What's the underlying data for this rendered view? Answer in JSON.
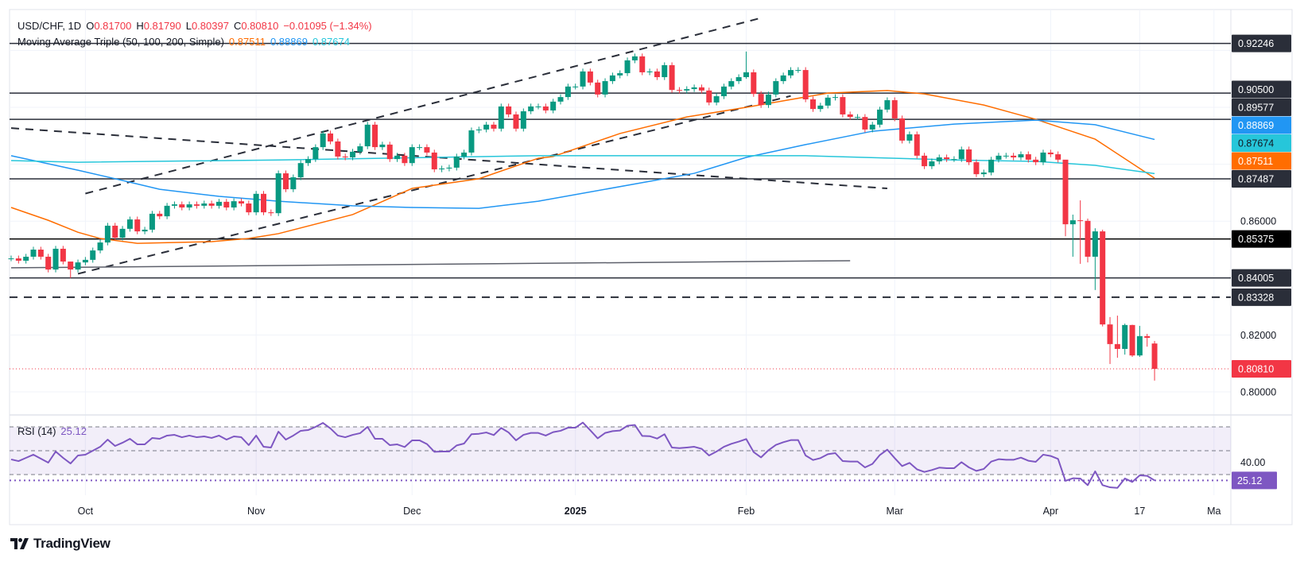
{
  "legend": {
    "symbol": "USD/CHF, 1D",
    "o_label": "O",
    "o": "0.81700",
    "h_label": "H",
    "h": "0.81790",
    "l_label": "L",
    "l": "0.80397",
    "c_label": "C",
    "c": "0.80810",
    "change": "−0.01095 (−1.34%)",
    "ma_title": "Moving Average Triple (50, 100, 200, Simple)",
    "ma50": "0.87511",
    "ma100": "0.88869",
    "ma200": "0.87674",
    "rsi_title": "RSI (14)",
    "rsi_value": "25.12"
  },
  "colors": {
    "up": "#089981",
    "down": "#f23645",
    "ma50": "#ff6d00",
    "ma100": "#2196f3",
    "ma200": "#26c6da",
    "rsi": "#7e57c2",
    "level": "#2a2e39",
    "tag_dark": "#2a2e39",
    "tag_black": "#000000",
    "grid": "#f0f3fa"
  },
  "brand": "TradingView",
  "chart_data": {
    "type": "candlestick",
    "symbol": "USD/CHF",
    "interval": "1D",
    "x_range": [
      "2024-09-17",
      "2025-04-21"
    ],
    "x_ticks": [
      {
        "label": "Oct",
        "date": "2024-10-01"
      },
      {
        "label": "Nov",
        "date": "2024-11-01"
      },
      {
        "label": "Dec",
        "date": "2024-12-02"
      },
      {
        "label": "2025",
        "date": "2025-01-01",
        "bold": true
      },
      {
        "label": "Feb",
        "date": "2025-02-03"
      },
      {
        "label": "Mar",
        "date": "2025-03-03"
      },
      {
        "label": "Apr",
        "date": "2025-04-01"
      },
      {
        "label": "17",
        "date": "2025-04-17"
      },
      {
        "label": "Ma",
        "date": "2025-05-01"
      }
    ],
    "y_ticks": [
      "0.86000",
      "0.82000",
      "0.80000"
    ],
    "y_grid": [
      0.8,
      0.82,
      0.84,
      0.86,
      0.88,
      0.9,
      0.92
    ],
    "close": [
      0.8469,
      0.8461,
      0.8475,
      0.85,
      0.8475,
      0.843,
      0.8503,
      0.8458,
      0.843,
      0.8455,
      0.8464,
      0.8497,
      0.8525,
      0.8584,
      0.8542,
      0.8573,
      0.8606,
      0.8564,
      0.857,
      0.8626,
      0.8617,
      0.8654,
      0.8659,
      0.8648,
      0.8659,
      0.8654,
      0.8662,
      0.8654,
      0.8668,
      0.8648,
      0.867,
      0.8662,
      0.8631,
      0.8696,
      0.8631,
      0.8628,
      0.8768,
      0.8712,
      0.8754,
      0.8804,
      0.8818,
      0.886,
      0.8908,
      0.888,
      0.8827,
      0.8824,
      0.8844,
      0.8863,
      0.8939,
      0.886,
      0.8869,
      0.8818,
      0.883,
      0.8804,
      0.886,
      0.886,
      0.8841,
      0.8782,
      0.8785,
      0.8788,
      0.8827,
      0.8841,
      0.8919,
      0.8922,
      0.8939,
      0.8925,
      0.9003,
      0.8975,
      0.8925,
      0.8986,
      0.9003,
      0.9003,
      0.8989,
      0.902,
      0.9036,
      0.9073,
      0.9073,
      0.9126,
      0.9087,
      0.9045,
      0.9092,
      0.9112,
      0.912,
      0.9165,
      0.9179,
      0.9123,
      0.9126,
      0.9106,
      0.9148,
      0.9061,
      0.9059,
      0.9064,
      0.907,
      0.9059,
      0.9017,
      0.9039,
      0.9073,
      0.9092,
      0.9106,
      0.9123,
      0.9047,
      0.9008,
      0.9045,
      0.9092,
      0.9112,
      0.9131,
      0.9131,
      0.9028,
      0.8994,
      0.9006,
      0.9034,
      0.9036,
      0.8975,
      0.8966,
      0.8966,
      0.8922,
      0.8939,
      0.8992,
      0.9025,
      0.8961,
      0.8883,
      0.8905,
      0.883,
      0.8793,
      0.881,
      0.8824,
      0.8818,
      0.8818,
      0.8852,
      0.8807,
      0.8765,
      0.8771,
      0.8816,
      0.883,
      0.883,
      0.8824,
      0.8835,
      0.8816,
      0.8807,
      0.8841,
      0.8835,
      0.8816,
      0.8589,
      0.8603,
      0.8601,
      0.8475,
      0.8564,
      0.8237,
      0.8168,
      0.8151,
      0.8235,
      0.8128,
      0.8196,
      0.819,
      0.8081
    ],
    "wick_extremes": {
      "2024-09-27": [
        0.8445,
        0.84
      ],
      "2025-02-03": [
        0.9196,
        0.91
      ],
      "2025-04-03": [
        0.88,
        0.8547
      ],
      "2025-04-04": [
        0.8623,
        0.8475
      ],
      "2025-04-07": [
        0.8673,
        0.845
      ],
      "2025-04-08": [
        0.8609,
        0.8455
      ],
      "2025-04-09": [
        0.8575,
        0.8358
      ],
      "2025-04-10": [
        0.857,
        0.823
      ],
      "2025-04-11": [
        0.8263,
        0.8098
      ],
      "2025-04-14": [
        0.8268,
        0.812
      ],
      "2025-04-15": [
        0.824,
        0.8131
      ],
      "2025-04-16": [
        0.8236,
        0.8123
      ],
      "2025-04-17": [
        0.8232,
        0.8123
      ],
      "2025-04-18": [
        0.8204,
        0.8159
      ],
      "2025-04-21": [
        0.8179,
        0.80397
      ]
    },
    "last_bar": {
      "date": "2025-04-21",
      "open": 0.817,
      "high": 0.8179,
      "low": 0.80397,
      "close": 0.8081
    },
    "moving_averages": [
      {
        "name": "MA 50",
        "color": "#ff6d00",
        "last": 0.87511,
        "points": [
          [
            "2024-09-17",
            0.8648
          ],
          [
            "2024-09-24",
            0.8603
          ],
          [
            "2024-09-30",
            0.8561
          ],
          [
            "2024-10-03",
            0.8539
          ],
          [
            "2024-10-10",
            0.8522
          ],
          [
            "2024-10-24",
            0.8528
          ],
          [
            "2024-10-31",
            0.8539
          ],
          [
            "2024-11-06",
            0.8556
          ],
          [
            "2024-11-20",
            0.8623
          ],
          [
            "2024-12-02",
            0.8715
          ],
          [
            "2024-12-13",
            0.8749
          ],
          [
            "2024-12-25",
            0.8821
          ],
          [
            "2024-12-27",
            0.8827
          ],
          [
            "2025-01-09",
            0.8908
          ],
          [
            "2025-01-22",
            0.8966
          ],
          [
            "2025-02-03",
            0.9
          ],
          [
            "2025-02-18",
            0.905
          ],
          [
            "2025-02-28",
            0.9059
          ],
          [
            "2025-03-07",
            0.9047
          ],
          [
            "2025-03-19",
            0.9008
          ],
          [
            "2025-03-28",
            0.8958
          ],
          [
            "2025-04-09",
            0.8888
          ],
          [
            "2025-04-21",
            0.8751
          ]
        ]
      },
      {
        "name": "MA 100",
        "color": "#2196f3",
        "last": 0.88869,
        "points": [
          [
            "2024-09-17",
            0.883
          ],
          [
            "2024-09-30",
            0.8779
          ],
          [
            "2024-10-08",
            0.8743
          ],
          [
            "2024-10-15",
            0.8712
          ],
          [
            "2024-10-25",
            0.8687
          ],
          [
            "2024-11-06",
            0.867
          ],
          [
            "2024-11-20",
            0.8654
          ],
          [
            "2024-12-02",
            0.8648
          ],
          [
            "2024-12-13",
            0.8645
          ],
          [
            "2024-12-25",
            0.867
          ],
          [
            "2025-01-23",
            0.8768
          ],
          [
            "2025-02-03",
            0.8824
          ],
          [
            "2025-02-13",
            0.8869
          ],
          [
            "2025-02-26",
            0.8916
          ],
          [
            "2025-03-13",
            0.8941
          ],
          [
            "2025-03-28",
            0.8955
          ],
          [
            "2025-04-09",
            0.8939
          ],
          [
            "2025-04-21",
            0.8887
          ]
        ]
      },
      {
        "name": "MA 200",
        "color": "#26c6da",
        "last": 0.87674,
        "points": [
          [
            "2024-09-17",
            0.8813
          ],
          [
            "2024-09-30",
            0.8807
          ],
          [
            "2024-11-06",
            0.8815
          ],
          [
            "2024-12-25",
            0.883
          ],
          [
            "2025-02-13",
            0.883
          ],
          [
            "2025-03-13",
            0.8815
          ],
          [
            "2025-03-28",
            0.881
          ],
          [
            "2025-04-09",
            0.8796
          ],
          [
            "2025-04-21",
            0.8767
          ]
        ]
      }
    ],
    "horizontal_levels": [
      {
        "price": 0.92246,
        "label": "0.92246",
        "style": "solid",
        "tag": "dark"
      },
      {
        "price": 0.905,
        "label": "0.90500",
        "style": "solid",
        "tag": "dark"
      },
      {
        "price": 0.89577,
        "label": "0.89577",
        "style": "solid",
        "tag": "dark"
      },
      {
        "price": 0.87487,
        "label": "0.87487",
        "style": "solid",
        "tag": "dark"
      },
      {
        "price": 0.85375,
        "label": "0.85375",
        "style": "solid",
        "tag": "black"
      },
      {
        "price": 0.84005,
        "label": "0.84005",
        "style": "solid",
        "tag": "dark"
      },
      {
        "price": 0.83328,
        "label": "0.83328",
        "style": "dashed",
        "tag": "dark"
      }
    ],
    "current_price": {
      "price": 0.8081,
      "label": "0.80810"
    },
    "trendlines": [
      {
        "style": "dashed",
        "from": [
          "2024-10-01",
          0.8697
        ],
        "to": [
          "2025-02-05",
          0.9314
        ]
      },
      {
        "style": "dashed",
        "from": [
          "2024-09-30",
          0.8415
        ],
        "to": [
          "2025-02-11",
          0.904
        ]
      },
      {
        "style": "dashed",
        "from": [
          "2024-09-17",
          0.8927
        ],
        "to": [
          "2025-02-28",
          0.8715
        ]
      },
      {
        "style": "solid-gray",
        "from": [
          "2024-09-17",
          0.8436
        ],
        "to": [
          "2025-02-21",
          0.8461
        ]
      }
    ],
    "rsi": {
      "period": 14,
      "upper": 70,
      "middle": 50,
      "lower": 30,
      "last": 25.12,
      "axis_label": "40.00",
      "values": [
        42.7,
        41.3,
        44,
        46.7,
        43.3,
        40,
        49.3,
        44,
        39.3,
        46,
        46.7,
        50,
        53.3,
        59.3,
        54,
        56.7,
        60,
        55.3,
        55.3,
        60.7,
        60,
        62.7,
        63.3,
        61.3,
        62.7,
        61.3,
        62,
        60.7,
        62.7,
        59.3,
        62,
        61.3,
        54.7,
        62.7,
        53.3,
        52.7,
        66,
        59.3,
        62.7,
        66.7,
        67.3,
        70,
        73.3,
        68.7,
        62.7,
        61.3,
        63.3,
        64.7,
        70,
        60,
        60,
        54.7,
        55.3,
        53.1,
        58.7,
        58.7,
        55.6,
        49.1,
        49.3,
        49.3,
        54.4,
        56,
        63.8,
        64.2,
        65.3,
        63.1,
        69.1,
        65.3,
        58.7,
        63.3,
        64.9,
        64.9,
        62.7,
        65.6,
        66.7,
        69.3,
        69.3,
        73.6,
        67.1,
        60.4,
        64.9,
        66.4,
        66.9,
        70.9,
        71.6,
        62.4,
        62.2,
        60.2,
        63.8,
        52.7,
        52.2,
        52.7,
        53.3,
        51.6,
        46,
        49.3,
        53.3,
        55.8,
        57.6,
        59.8,
        48.9,
        44.4,
        50.4,
        54.9,
        57.1,
        58.9,
        58.9,
        46,
        42.2,
        43.8,
        47.1,
        48,
        41.3,
        40.9,
        40.9,
        36,
        38.9,
        46.4,
        50.9,
        43.8,
        37.1,
        39.8,
        34.4,
        32.2,
        33.8,
        35.8,
        35.3,
        35.3,
        40.4,
        36,
        33.1,
        34.7,
        40.9,
        42.9,
        42.4,
        42.4,
        44.2,
        41.6,
        40.7,
        46.7,
        45.6,
        43.1,
        24.7,
        26.9,
        26.7,
        21.1,
        32.7,
        21.1,
        19.3,
        18.8,
        26.7,
        23.8,
        29.3,
        28.9,
        25.12
      ]
    }
  }
}
